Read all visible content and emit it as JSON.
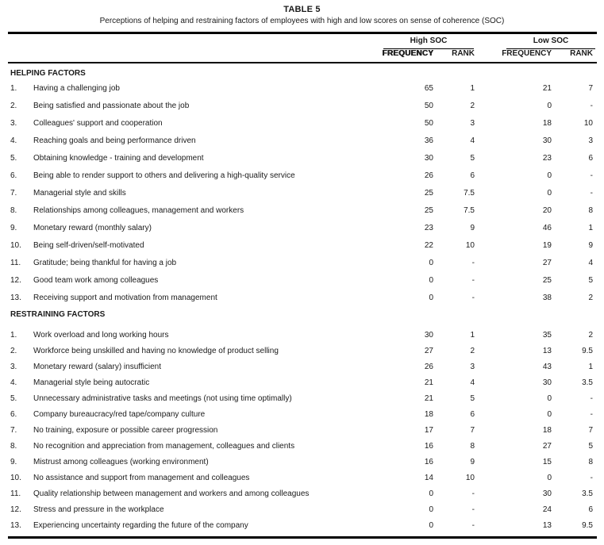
{
  "colors": {
    "background": "#ffffff",
    "text": "#1a1a1a",
    "rule": "#000000"
  },
  "table": {
    "title": "TABLE 5",
    "subtitle": "Perceptions of helping and restraining factors of employees with high and low scores on sense of coherence (SOC)",
    "col_groups": [
      {
        "label": "High SOC"
      },
      {
        "label": "Low SOC"
      }
    ],
    "col_headers": [
      "FREQUENCY",
      "RANK",
      "FREQUENCY",
      "RANK"
    ],
    "sections": [
      {
        "heading": "HELPING FACTORS",
        "rows": [
          {
            "num": "1.",
            "label": "Having a challenging job",
            "high_freq": "65",
            "high_rank": "1",
            "low_freq": "21",
            "low_rank": "7"
          },
          {
            "num": "2.",
            "label": "Being satisfied and passionate about the job",
            "high_freq": "50",
            "high_rank": "2",
            "low_freq": "0",
            "low_rank": "-"
          },
          {
            "num": "3.",
            "label": "Colleagues' support and cooperation",
            "high_freq": "50",
            "high_rank": "3",
            "low_freq": "18",
            "low_rank": "10"
          },
          {
            "num": "4.",
            "label": "Reaching goals and being performance driven",
            "high_freq": "36",
            "high_rank": "4",
            "low_freq": "30",
            "low_rank": "3"
          },
          {
            "num": "5.",
            "label": "Obtaining knowledge - training and development",
            "high_freq": "30",
            "high_rank": "5",
            "low_freq": "23",
            "low_rank": "6"
          },
          {
            "num": "6.",
            "label": "Being able to render support to others and delivering a high-quality service",
            "high_freq": "26",
            "high_rank": "6",
            "low_freq": "0",
            "low_rank": "-"
          },
          {
            "num": "7.",
            "label": "Managerial style and skills",
            "high_freq": "25",
            "high_rank": "7.5",
            "low_freq": "0",
            "low_rank": "-"
          },
          {
            "num": "8.",
            "label": "Relationships among colleagues, management and workers",
            "high_freq": "25",
            "high_rank": "7.5",
            "low_freq": "20",
            "low_rank": "8"
          },
          {
            "num": "9.",
            "label": "Monetary reward (monthly salary)",
            "high_freq": "23",
            "high_rank": "9",
            "low_freq": "46",
            "low_rank": "1"
          },
          {
            "num": "10.",
            "label": "Being self-driven/self-motivated",
            "high_freq": "22",
            "high_rank": "10",
            "low_freq": "19",
            "low_rank": "9"
          },
          {
            "num": "11.",
            "label": "Gratitude; being thankful for having a job",
            "high_freq": "0",
            "high_rank": "-",
            "low_freq": "27",
            "low_rank": "4"
          },
          {
            "num": "12.",
            "label": "Good team work among colleagues",
            "high_freq": "0",
            "high_rank": "-",
            "low_freq": "25",
            "low_rank": "5"
          },
          {
            "num": "13.",
            "label": "Receiving support and motivation from management",
            "high_freq": "0",
            "high_rank": "-",
            "low_freq": "38",
            "low_rank": "2"
          }
        ]
      },
      {
        "heading": "RESTRAINING FACTORS",
        "rows": [
          {
            "num": "1.",
            "label": "Work overload and long working hours",
            "high_freq": "30",
            "high_rank": "1",
            "low_freq": "35",
            "low_rank": "2"
          },
          {
            "num": "2.",
            "label": "Workforce being unskilled and having no knowledge of product selling",
            "high_freq": "27",
            "high_rank": "2",
            "low_freq": "13",
            "low_rank": "9.5"
          },
          {
            "num": "3.",
            "label": "Monetary reward (salary) insufficient",
            "high_freq": "26",
            "high_rank": "3",
            "low_freq": "43",
            "low_rank": "1"
          },
          {
            "num": "4.",
            "label": "Managerial style being autocratic",
            "high_freq": "21",
            "high_rank": "4",
            "low_freq": "30",
            "low_rank": "3.5"
          },
          {
            "num": "5.",
            "label": "Unnecessary administrative tasks and meetings (not using time optimally)",
            "high_freq": "21",
            "high_rank": "5",
            "low_freq": "0",
            "low_rank": "-"
          },
          {
            "num": "6.",
            "label": "Company bureaucracy/red tape/company culture",
            "high_freq": "18",
            "high_rank": "6",
            "low_freq": "0",
            "low_rank": "-"
          },
          {
            "num": "7.",
            "label": "No training, exposure or possible career progression",
            "high_freq": "17",
            "high_rank": "7",
            "low_freq": "18",
            "low_rank": "7"
          },
          {
            "num": "8.",
            "label": "No recognition and appreciation from management, colleagues and clients",
            "high_freq": "16",
            "high_rank": "8",
            "low_freq": "27",
            "low_rank": "5"
          },
          {
            "num": "9.",
            "label": "Mistrust among colleagues (working environment)",
            "high_freq": "16",
            "high_rank": "9",
            "low_freq": "15",
            "low_rank": "8"
          },
          {
            "num": "10.",
            "label": "No assistance and support from management and colleagues",
            "high_freq": "14",
            "high_rank": "10",
            "low_freq": "0",
            "low_rank": "-"
          },
          {
            "num": "11.",
            "label": "Quality relationship between management and workers and among colleagues",
            "high_freq": "0",
            "high_rank": "-",
            "low_freq": "30",
            "low_rank": "3.5"
          },
          {
            "num": "12.",
            "label": "Stress and pressure in the workplace",
            "high_freq": "0",
            "high_rank": "-",
            "low_freq": "24",
            "low_rank": "6"
          },
          {
            "num": "13.",
            "label": "Experiencing uncertainty regarding the future of the company",
            "high_freq": "0",
            "high_rank": "-",
            "low_freq": "13",
            "low_rank": "9.5"
          }
        ]
      }
    ]
  }
}
